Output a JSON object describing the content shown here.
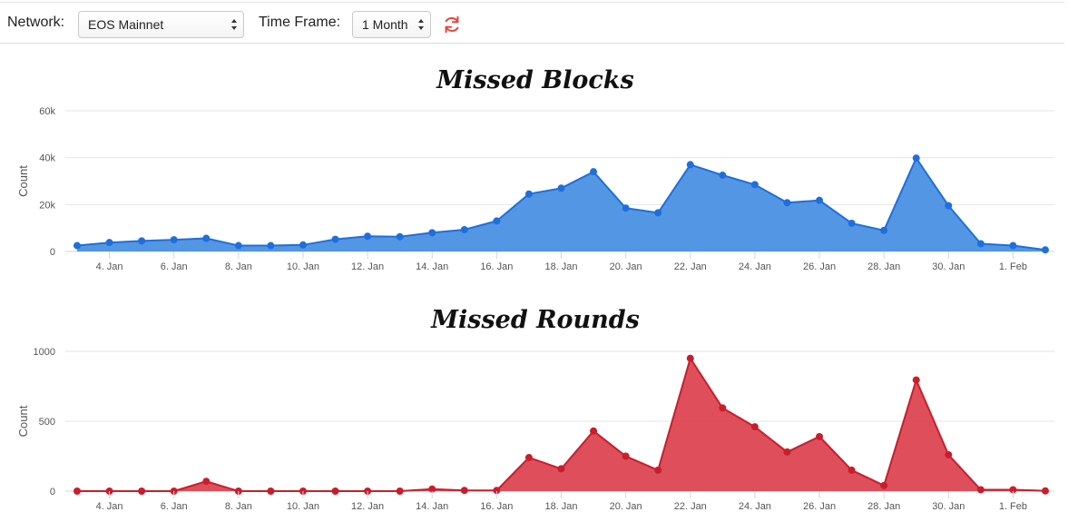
{
  "toolbar": {
    "network_label": "Network:",
    "network_value": "EOS Mainnet",
    "timeframe_label": "Time Frame:",
    "timeframe_value": "1 Month",
    "refresh_icon": "refresh-icon"
  },
  "chart_data": [
    {
      "type": "area",
      "title": "Missed Blocks",
      "ylabel": "Count",
      "color": "#4a90e2",
      "line_color": "#1f6fdb",
      "ylim": [
        0,
        60000
      ],
      "yticks": [
        0,
        20000,
        40000,
        60000
      ],
      "ytick_labels": [
        "0",
        "20k",
        "40k",
        "60k"
      ],
      "x_tick_labels": [
        "4. Jan",
        "6. Jan",
        "8. Jan",
        "10. Jan",
        "12. Jan",
        "14. Jan",
        "16. Jan",
        "18. Jan",
        "20. Jan",
        "22. Jan",
        "24. Jan",
        "26. Jan",
        "28. Jan",
        "30. Jan",
        "1. Feb"
      ],
      "x": [
        "3. Jan",
        "4. Jan",
        "5. Jan",
        "6. Jan",
        "7. Jan",
        "8. Jan",
        "9. Jan",
        "10. Jan",
        "11. Jan",
        "12. Jan",
        "13. Jan",
        "14. Jan",
        "15. Jan",
        "16. Jan",
        "17. Jan",
        "18. Jan",
        "19. Jan",
        "20. Jan",
        "21. Jan",
        "22. Jan",
        "23. Jan",
        "24. Jan",
        "25. Jan",
        "26. Jan",
        "27. Jan",
        "28. Jan",
        "29. Jan",
        "30. Jan",
        "31. Jan",
        "1. Feb",
        "2. Feb"
      ],
      "values": [
        2500,
        3800,
        4500,
        5000,
        5600,
        2500,
        2500,
        2800,
        5200,
        6500,
        6300,
        8000,
        9300,
        13000,
        24500,
        27000,
        34000,
        18500,
        16500,
        37000,
        32500,
        28500,
        20800,
        21800,
        12000,
        9000,
        39800,
        19500,
        3300,
        2500,
        700
      ]
    },
    {
      "type": "area",
      "title": "Missed Rounds",
      "ylabel": "Count",
      "color": "#dc4652",
      "line_color": "#c81e2c",
      "ylim": [
        0,
        1000
      ],
      "yticks": [
        0,
        500,
        1000
      ],
      "ytick_labels": [
        "0",
        "500",
        "1000"
      ],
      "x_tick_labels": [
        "4. Jan",
        "6. Jan",
        "8. Jan",
        "10. Jan",
        "12. Jan",
        "14. Jan",
        "16. Jan",
        "18. Jan",
        "20. Jan",
        "22. Jan",
        "24. Jan",
        "26. Jan",
        "28. Jan",
        "30. Jan",
        "1. Feb"
      ],
      "x": [
        "3. Jan",
        "4. Jan",
        "5. Jan",
        "6. Jan",
        "7. Jan",
        "8. Jan",
        "9. Jan",
        "10. Jan",
        "11. Jan",
        "12. Jan",
        "13. Jan",
        "14. Jan",
        "15. Jan",
        "16. Jan",
        "17. Jan",
        "18. Jan",
        "19. Jan",
        "20. Jan",
        "21. Jan",
        "22. Jan",
        "23. Jan",
        "24. Jan",
        "25. Jan",
        "26. Jan",
        "27. Jan",
        "28. Jan",
        "29. Jan",
        "30. Jan",
        "31. Jan",
        "1. Feb",
        "2. Feb"
      ],
      "values": [
        0,
        0,
        0,
        0,
        70,
        0,
        0,
        0,
        0,
        0,
        0,
        15,
        5,
        5,
        240,
        160,
        430,
        250,
        150,
        950,
        595,
        460,
        280,
        390,
        150,
        40,
        795,
        260,
        10,
        10,
        2
      ]
    }
  ]
}
